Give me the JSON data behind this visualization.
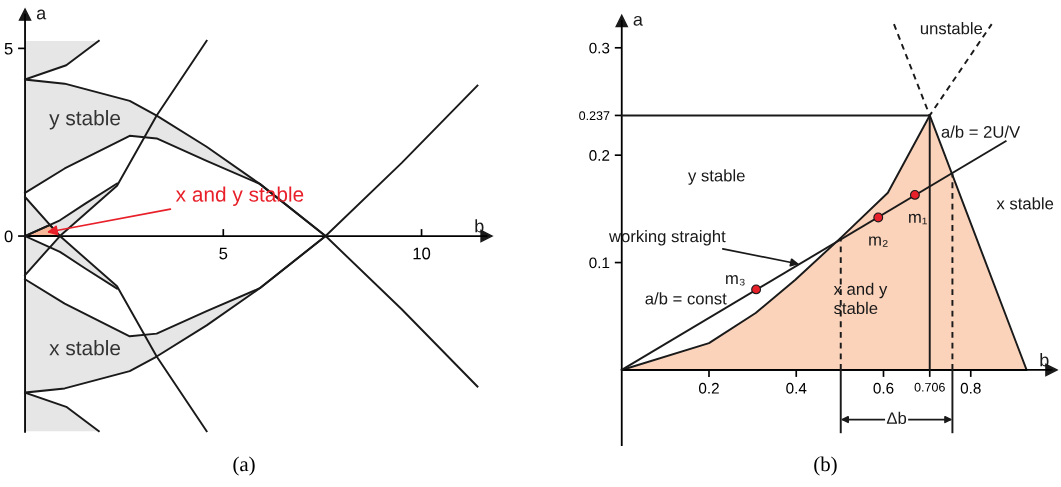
{
  "chart_data": [
    {
      "type": "line",
      "xlabel": "b",
      "ylabel": "a",
      "xlim": [
        0,
        11.64
      ],
      "ylim": [
        -5.22,
        5.9
      ],
      "xticks": [
        5,
        10
      ],
      "yticks": [
        0,
        5
      ],
      "series": [
        {
          "color": "#1a1a1a",
          "x": [
            0,
            1,
            2.64,
            3.32,
            4.58,
            5.92,
            7.58,
            9.5,
            11.41
          ],
          "values": [
            4.17,
            4.06,
            3.6,
            3.21,
            2.38,
            1.39,
            0,
            -1.95,
            -4.01
          ]
        },
        {
          "color": "#1a1a1a",
          "x": [
            0,
            1,
            2.64,
            3.32,
            4.58,
            5.92,
            7.58
          ],
          "values": [
            1.15,
            1.8,
            2.67,
            2.6,
            2.0,
            1.39,
            0
          ],
          "lower": [
            1.15,
            1.8,
            2.67,
            2.6,
            2.0,
            1.39,
            0
          ],
          "upper": [
            4.17,
            4.06,
            3.6,
            3.21,
            2.38,
            1.39,
            0
          ]
        },
        {
          "color": "#1a1a1a",
          "x": [
            0,
            1.04,
            1.86
          ],
          "values": [
            4.17,
            4.55,
            5.2
          ],
          "lower": [
            4.17,
            4.55,
            5.2
          ],
          "upper": [
            5.2,
            5.2,
            5.2
          ]
        },
        {
          "color": "#1a1a1a",
          "x": [
            0,
            0.88,
            2.32,
            3.32,
            4.58
          ],
          "values": [
            -1.04,
            0,
            1.34,
            3.21,
            5.2
          ]
        },
        {
          "color": "#1a1a1a",
          "x": [
            0,
            0.63,
            0.88,
            1.5,
            2.32
          ],
          "values": [
            0,
            0.3,
            0.42,
            0.85,
            1.4
          ],
          "lower": [
            0,
            0.3,
            0,
            0.6,
            1.34
          ],
          "upper": [
            1.04,
            0.3,
            0.42,
            0.85,
            1.4
          ]
        },
        {
          "color": "#1a1a1a",
          "x": [
            0,
            1,
            2.64,
            3.32,
            4.58,
            5.92,
            7.58,
            9.5,
            11.41
          ],
          "values": [
            -4.17,
            -4.06,
            -3.6,
            -3.21,
            -2.38,
            -1.39,
            0,
            1.95,
            4.01
          ]
        },
        {
          "color": "#1a1a1a",
          "x": [
            0,
            1,
            2.64,
            3.32,
            4.58,
            5.92,
            7.58
          ],
          "values": [
            -1.15,
            -1.8,
            -2.67,
            -2.6,
            -2.0,
            -1.39,
            0
          ],
          "lower": [
            -4.17,
            -4.06,
            -3.6,
            -3.21,
            -2.38,
            -1.39,
            0
          ],
          "upper": [
            -1.15,
            -1.8,
            -2.67,
            -2.6,
            -2.0,
            -1.39,
            0
          ]
        },
        {
          "color": "#1a1a1a",
          "x": [
            0,
            1.04,
            1.86
          ],
          "values": [
            -4.17,
            -4.55,
            -5.2
          ],
          "lower": [
            -5.2,
            -5.2,
            -5.2
          ],
          "upper": [
            -4.17,
            -4.55,
            -5.2
          ]
        },
        {
          "color": "#1a1a1a",
          "x": [
            0,
            0.88,
            2.32,
            3.32,
            4.58
          ],
          "values": [
            1.04,
            0,
            -1.34,
            -3.21,
            -5.2
          ]
        },
        {
          "color": "#1a1a1a",
          "x": [
            0,
            0.63,
            0.88,
            1.5,
            2.32
          ],
          "values": [
            0,
            -0.3,
            -0.42,
            -0.85,
            -1.4
          ],
          "lower": [
            -1.04,
            -0.3,
            -0.42,
            -0.85,
            -1.4
          ],
          "upper": [
            0,
            -0.3,
            0,
            -0.6,
            -1.34
          ]
        },
        {
          "type": "area",
          "color": "#f7b99a",
          "x": [
            0,
            0.63,
            0.88
          ],
          "values": [
            0,
            0.3,
            0
          ]
        }
      ],
      "annotations": [
        "y stable",
        "x stable",
        {
          "text": "x and y stable",
          "x": 0.55,
          "y": 0.1
        },
        "(a)"
      ]
    },
    {
      "type": "line",
      "xlabel": "b",
      "ylabel": "a",
      "xlim": [
        0,
        0.985
      ],
      "ylim": [
        -0.07,
        0.325
      ],
      "xticks": [
        0.2,
        0.4,
        0.6,
        0.706,
        0.8
      ],
      "yticks": [
        0.1,
        0.2,
        0.237,
        0.3
      ],
      "series": [
        {
          "type": "area",
          "color": "#fbd3bb",
          "x": [
            0,
            0.2,
            0.307,
            0.398,
            0.502,
            0.61,
            0.706,
            0.928
          ],
          "values": [
            0,
            0.025,
            0.053,
            0.084,
            0.123,
            0.165,
            0.237,
            0
          ]
        },
        {
          "color": "#1a1a1a",
          "x": [
            0,
            0.88
          ],
          "values": [
            0,
            0.213
          ]
        },
        {
          "color": "#1a1a1a",
          "x": [
            0,
            0.706
          ],
          "values": [
            0.237,
            0.237
          ]
        },
        {
          "color": "#1a1a1a",
          "x": [
            0.706,
            0.706
          ],
          "values": [
            0,
            0.237
          ]
        },
        {
          "color": "#1a1a1a",
          "line_style": "dashed",
          "x": [
            0.624,
            0.706,
            0.848
          ],
          "values": [
            0.322,
            0.237,
            0.322
          ]
        },
        {
          "color": "#1a1a1a",
          "line_style": "dashed",
          "x": [
            0.502,
            0.502
          ],
          "values": [
            0,
            0.123
          ]
        },
        {
          "color": "#1a1a1a",
          "line_style": "dashed",
          "x": [
            0.758,
            0.758
          ],
          "values": [
            0,
            0.183
          ]
        },
        {
          "color": "#1a1a1a",
          "x": [
            0.502,
            0.502
          ],
          "values": [
            -0.058,
            0
          ]
        },
        {
          "color": "#1a1a1a",
          "x": [
            0.758,
            0.758
          ],
          "values": [
            -0.058,
            0
          ]
        },
        {
          "type": "scatter",
          "color": "#e8202a",
          "marker": "circle",
          "x": [
            0.308,
            0.588,
            0.672
          ],
          "values": [
            0.075,
            0.142,
            0.163
          ]
        }
      ],
      "annotations": [
        "y stable",
        "x stable",
        "unstable",
        "x and y\nstable",
        {
          "text": "working straight",
          "x": 0.407,
          "y": 0.0985
        },
        "a/b = const",
        "a/b = 2U/V",
        {
          "text": "m₁",
          "x": 0.672,
          "y": 0.163
        },
        {
          "text": "m₂",
          "x": 0.588,
          "y": 0.142
        },
        {
          "text": "m₃",
          "x": 0.308,
          "y": 0.075
        },
        "Δb",
        "(b)"
      ]
    }
  ]
}
